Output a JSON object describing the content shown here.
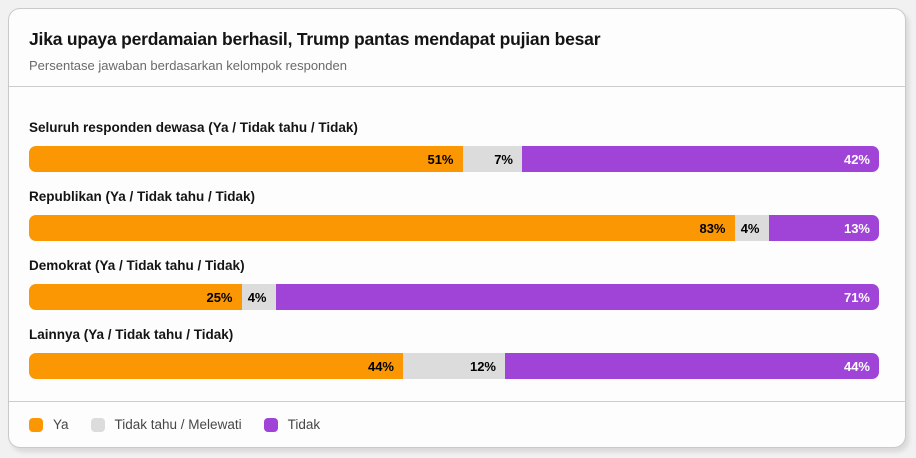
{
  "header": {
    "title": "Jika upaya perdamaian berhasil, Trump pantas mendapat pujian besar",
    "subtitle": "Persentase jawaban berdasarkan kelompok responden"
  },
  "colors": {
    "ya": "#FB9702",
    "tidak_tahu": "#DCDCDC",
    "tidak": "#A044D8",
    "card_background": "#FDFDFD",
    "page_background": "#F2F1F1",
    "divider": "#CCCCCC"
  },
  "chart_data": {
    "type": "bar",
    "subtype": "horizontal-stacked",
    "title": "Jika upaya perdamaian berhasil, Trump pantas mendapat pujian besar",
    "subtitle": "Persentase jawaban berdasarkan kelompok responden",
    "value_suffix": "%",
    "xlim": [
      0,
      100
    ],
    "legend_position": "bottom",
    "categories": [
      "Seluruh responden dewasa (Ya / Tidak tahu / Tidak)",
      "Republikan (Ya / Tidak tahu / Tidak)",
      "Demokrat (Ya / Tidak tahu / Tidak)",
      "Lainnya (Ya / Tidak tahu / Tidak)"
    ],
    "series": [
      {
        "name": "Ya",
        "key": "ya",
        "color": "#FB9702",
        "text_color": "#000000",
        "values": [
          51,
          83,
          25,
          44
        ]
      },
      {
        "name": "Tidak tahu / Melewati",
        "key": "tidak-tahu",
        "color": "#DCDCDC",
        "text_color": "#000000",
        "values": [
          7,
          4,
          4,
          12
        ]
      },
      {
        "name": "Tidak",
        "key": "tidak",
        "color": "#A044D8",
        "text_color": "#FFFFFF",
        "values": [
          42,
          13,
          71,
          44
        ]
      }
    ]
  }
}
